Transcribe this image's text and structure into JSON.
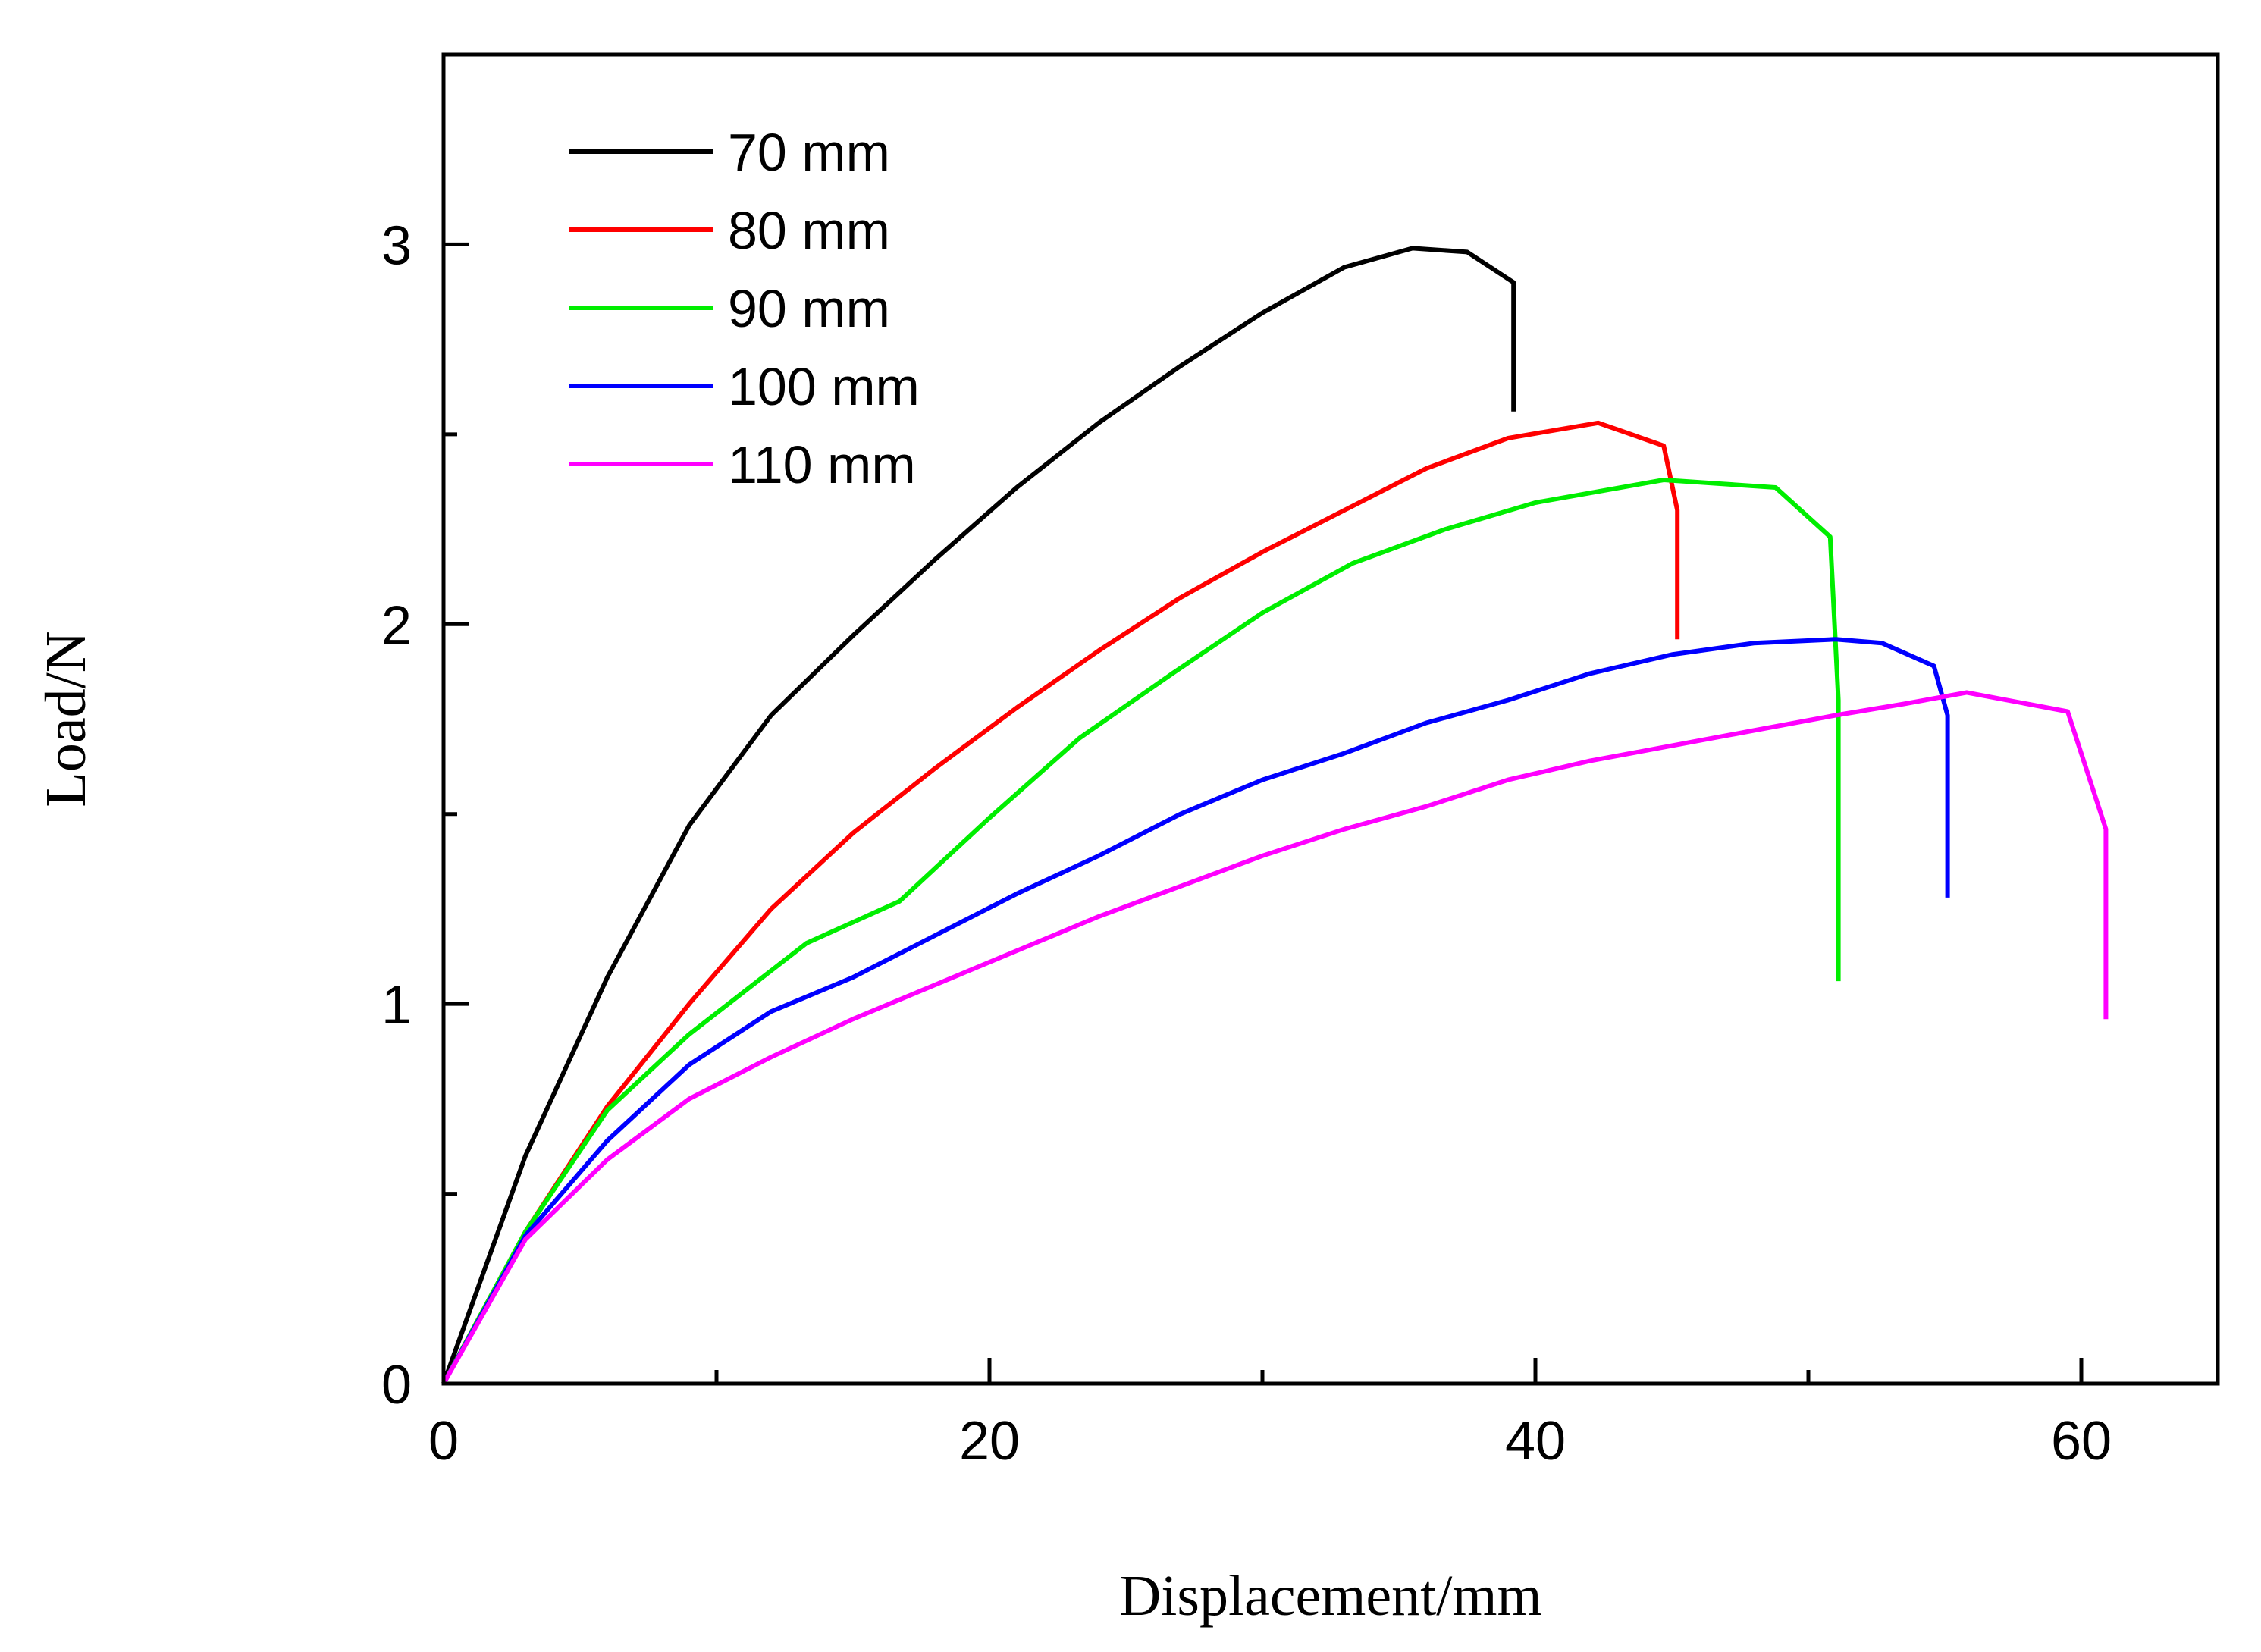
{
  "chart_data": {
    "type": "line",
    "title": "",
    "xlabel": "Displacement/mm",
    "ylabel": "Load/N",
    "xlim": [
      0,
      65
    ],
    "ylim": [
      0,
      3.5
    ],
    "x_major_ticks": [
      0,
      20,
      40,
      60
    ],
    "x_minor_ticks": [
      10,
      30,
      50
    ],
    "y_major_ticks": [
      0,
      1,
      2,
      3
    ],
    "y_minor_ticks": [
      0.5,
      1.5,
      2.5
    ],
    "x_tick_labels": [
      "0",
      "20",
      "40",
      "60"
    ],
    "y_tick_labels": [
      "0",
      "1",
      "2",
      "3"
    ],
    "grid": false,
    "legend_position": "top-left",
    "series": [
      {
        "name": "70 mm",
        "color": "#000000",
        "x": [
          0,
          3,
          6,
          9,
          12,
          15,
          18,
          21,
          24,
          27,
          30,
          33,
          35.5,
          37.5,
          39.2,
          39.2
        ],
        "y": [
          0,
          0.6,
          1.07,
          1.47,
          1.76,
          1.97,
          2.17,
          2.36,
          2.53,
          2.68,
          2.82,
          2.94,
          2.99,
          2.98,
          2.9,
          2.56
        ]
      },
      {
        "name": "80 mm",
        "color": "#ff0000",
        "x": [
          0,
          3,
          6,
          9,
          12,
          15,
          18,
          21,
          24,
          27,
          30,
          33,
          36,
          39,
          42.3,
          44.7,
          45.2,
          45.2
        ],
        "y": [
          0,
          0.4,
          0.73,
          1.0,
          1.25,
          1.45,
          1.62,
          1.78,
          1.93,
          2.07,
          2.19,
          2.3,
          2.41,
          2.49,
          2.53,
          2.47,
          2.3,
          1.96
        ]
      },
      {
        "name": "90 mm",
        "color": "#00ee00",
        "x": [
          0,
          3,
          6,
          9,
          13.3,
          16.7,
          20,
          23.3,
          26.7,
          30,
          33.3,
          36.7,
          40,
          44.7,
          48.8,
          50.8,
          51.1,
          51.1
        ],
        "y": [
          0,
          0.4,
          0.72,
          0.92,
          1.16,
          1.27,
          1.49,
          1.7,
          1.87,
          2.03,
          2.16,
          2.25,
          2.32,
          2.38,
          2.36,
          2.23,
          1.8,
          1.06
        ]
      },
      {
        "name": "100 mm",
        "color": "#0000ff",
        "x": [
          0,
          3,
          6,
          9,
          12,
          15,
          18,
          21,
          24,
          27,
          30,
          33,
          36,
          39,
          42,
          45,
          48,
          51,
          52.7,
          54.6,
          55.1,
          55.1
        ],
        "y": [
          0,
          0.39,
          0.64,
          0.84,
          0.98,
          1.07,
          1.18,
          1.29,
          1.39,
          1.5,
          1.59,
          1.66,
          1.74,
          1.8,
          1.87,
          1.92,
          1.95,
          1.96,
          1.95,
          1.89,
          1.76,
          1.28
        ]
      },
      {
        "name": "110 mm",
        "color": "#ff00ff",
        "x": [
          0,
          3,
          6,
          9,
          12,
          15,
          18,
          21,
          24,
          27,
          30,
          33,
          36,
          39,
          42,
          45,
          48,
          51,
          53.5,
          55.8,
          59.5,
          60.9,
          60.9
        ],
        "y": [
          0,
          0.38,
          0.59,
          0.75,
          0.86,
          0.96,
          1.05,
          1.14,
          1.23,
          1.31,
          1.39,
          1.46,
          1.52,
          1.59,
          1.64,
          1.68,
          1.72,
          1.76,
          1.79,
          1.82,
          1.77,
          1.46,
          0.96
        ]
      }
    ]
  }
}
